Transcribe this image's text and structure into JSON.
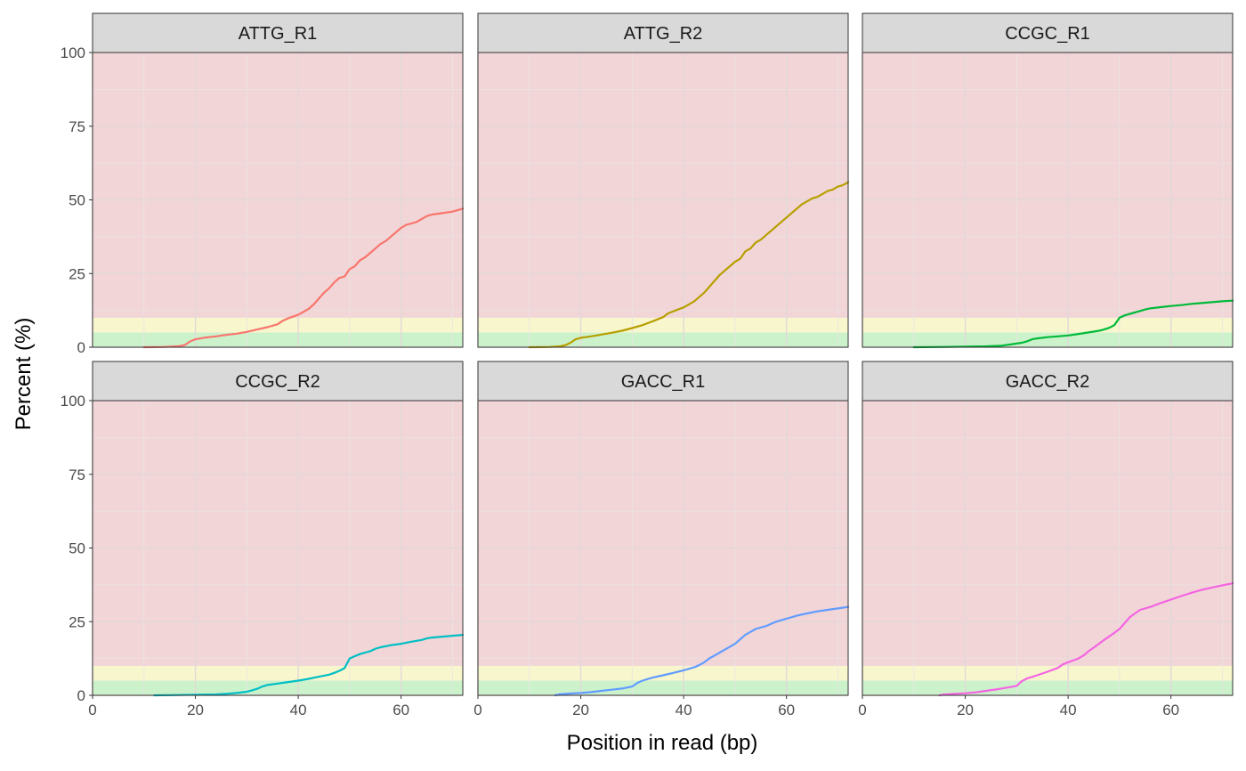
{
  "chart_data": {
    "type": "line",
    "layout": "facet-grid-2x3",
    "xlabel": "Position in read (bp)",
    "ylabel": "Percent (%)",
    "xlim": [
      0,
      72
    ],
    "ylim": [
      0,
      100
    ],
    "x_ticks": [
      0,
      20,
      40,
      60
    ],
    "y_ticks": [
      0,
      25,
      50,
      75,
      100
    ],
    "grid": true,
    "legend": "none",
    "background_bands": [
      {
        "from": 0,
        "to": 5,
        "color": "#ccf2cc"
      },
      {
        "from": 5,
        "to": 10,
        "color": "#f7f6cd"
      },
      {
        "from": 10,
        "to": 100,
        "color": "#f2d5d7"
      }
    ],
    "panels": [
      {
        "title": "ATTG_R1",
        "color": "#F8766D",
        "points": [
          [
            10,
            0
          ],
          [
            14,
            0.1
          ],
          [
            17,
            0.4
          ],
          [
            18,
            0.8
          ],
          [
            19,
            2.0
          ],
          [
            20,
            2.7
          ],
          [
            22,
            3.3
          ],
          [
            24,
            3.7
          ],
          [
            26,
            4.2
          ],
          [
            28,
            4.6
          ],
          [
            30,
            5.2
          ],
          [
            32,
            6.0
          ],
          [
            34,
            6.8
          ],
          [
            36,
            7.8
          ],
          [
            37,
            9.0
          ],
          [
            38,
            9.8
          ],
          [
            40,
            11.0
          ],
          [
            42,
            13.0
          ],
          [
            43,
            14.5
          ],
          [
            44,
            16.5
          ],
          [
            45,
            18.5
          ],
          [
            46,
            20.0
          ],
          [
            47,
            22.0
          ],
          [
            48,
            23.5
          ],
          [
            49,
            24.0
          ],
          [
            50,
            26.5
          ],
          [
            51,
            27.5
          ],
          [
            52,
            29.5
          ],
          [
            53,
            30.5
          ],
          [
            54,
            32.0
          ],
          [
            55,
            33.5
          ],
          [
            56,
            35.0
          ],
          [
            57,
            36.0
          ],
          [
            58,
            37.5
          ],
          [
            59,
            39.0
          ],
          [
            60,
            40.5
          ],
          [
            61,
            41.5
          ],
          [
            62,
            42.0
          ],
          [
            63,
            42.5
          ],
          [
            64,
            43.5
          ],
          [
            65,
            44.5
          ],
          [
            66,
            45.0
          ],
          [
            68,
            45.5
          ],
          [
            70,
            46.0
          ],
          [
            72,
            47.0
          ]
        ]
      },
      {
        "title": "ATTG_R2",
        "color": "#B79F00",
        "points": [
          [
            10,
            0
          ],
          [
            14,
            0.1
          ],
          [
            16,
            0.3
          ],
          [
            17,
            0.7
          ],
          [
            18,
            1.5
          ],
          [
            19,
            2.7
          ],
          [
            20,
            3.2
          ],
          [
            22,
            3.7
          ],
          [
            24,
            4.3
          ],
          [
            26,
            4.9
          ],
          [
            28,
            5.6
          ],
          [
            30,
            6.5
          ],
          [
            32,
            7.5
          ],
          [
            34,
            8.8
          ],
          [
            36,
            10.2
          ],
          [
            37,
            11.5
          ],
          [
            38,
            12.2
          ],
          [
            40,
            13.5
          ],
          [
            42,
            15.5
          ],
          [
            44,
            18.5
          ],
          [
            45,
            20.5
          ],
          [
            46,
            22.5
          ],
          [
            47,
            24.5
          ],
          [
            48,
            26.0
          ],
          [
            49,
            27.5
          ],
          [
            50,
            29.0
          ],
          [
            51,
            30.0
          ],
          [
            52,
            32.5
          ],
          [
            53,
            33.5
          ],
          [
            54,
            35.5
          ],
          [
            55,
            36.5
          ],
          [
            56,
            38.0
          ],
          [
            57,
            39.5
          ],
          [
            58,
            41.0
          ],
          [
            59,
            42.5
          ],
          [
            60,
            44.0
          ],
          [
            61,
            45.5
          ],
          [
            62,
            47.0
          ],
          [
            63,
            48.5
          ],
          [
            64,
            49.5
          ],
          [
            65,
            50.5
          ],
          [
            66,
            51.0
          ],
          [
            67,
            52.0
          ],
          [
            68,
            53.0
          ],
          [
            69,
            53.5
          ],
          [
            70,
            54.5
          ],
          [
            71,
            55.0
          ],
          [
            72,
            56.0
          ]
        ]
      },
      {
        "title": "CCGC_R1",
        "color": "#00BA38",
        "points": [
          [
            10,
            0
          ],
          [
            16,
            0.1
          ],
          [
            20,
            0.2
          ],
          [
            24,
            0.3
          ],
          [
            27,
            0.5
          ],
          [
            29,
            1.0
          ],
          [
            31,
            1.5
          ],
          [
            32,
            2.0
          ],
          [
            33,
            2.7
          ],
          [
            34,
            3.0
          ],
          [
            36,
            3.4
          ],
          [
            38,
            3.7
          ],
          [
            40,
            4.0
          ],
          [
            42,
            4.5
          ],
          [
            44,
            5.0
          ],
          [
            46,
            5.6
          ],
          [
            47,
            6.0
          ],
          [
            48,
            6.6
          ],
          [
            49,
            7.5
          ],
          [
            50,
            10.0
          ],
          [
            51,
            10.8
          ],
          [
            52,
            11.3
          ],
          [
            53,
            11.8
          ],
          [
            54,
            12.3
          ],
          [
            55,
            12.8
          ],
          [
            56,
            13.2
          ],
          [
            58,
            13.6
          ],
          [
            60,
            14.0
          ],
          [
            62,
            14.3
          ],
          [
            64,
            14.7
          ],
          [
            66,
            15.0
          ],
          [
            68,
            15.3
          ],
          [
            70,
            15.6
          ],
          [
            72,
            15.8
          ]
        ]
      },
      {
        "title": "CCGC_R2",
        "color": "#00BFC4",
        "points": [
          [
            12,
            0
          ],
          [
            16,
            0.1
          ],
          [
            20,
            0.2
          ],
          [
            24,
            0.3
          ],
          [
            26,
            0.5
          ],
          [
            28,
            0.8
          ],
          [
            30,
            1.2
          ],
          [
            31,
            1.7
          ],
          [
            32,
            2.2
          ],
          [
            33,
            3.0
          ],
          [
            34,
            3.5
          ],
          [
            36,
            4.0
          ],
          [
            38,
            4.5
          ],
          [
            40,
            5.0
          ],
          [
            42,
            5.6
          ],
          [
            44,
            6.3
          ],
          [
            46,
            7.0
          ],
          [
            47,
            7.6
          ],
          [
            48,
            8.3
          ],
          [
            49,
            9.2
          ],
          [
            50,
            12.5
          ],
          [
            51,
            13.3
          ],
          [
            52,
            14.0
          ],
          [
            53,
            14.5
          ],
          [
            54,
            15.0
          ],
          [
            55,
            15.8
          ],
          [
            56,
            16.3
          ],
          [
            58,
            17.0
          ],
          [
            60,
            17.5
          ],
          [
            62,
            18.2
          ],
          [
            64,
            18.8
          ],
          [
            65,
            19.3
          ],
          [
            66,
            19.6
          ],
          [
            68,
            19.9
          ],
          [
            70,
            20.2
          ],
          [
            72,
            20.5
          ]
        ]
      },
      {
        "title": "GACC_R1",
        "color": "#619CFF",
        "points": [
          [
            15,
            0
          ],
          [
            16,
            0.4
          ],
          [
            18,
            0.6
          ],
          [
            20,
            0.8
          ],
          [
            22,
            1.1
          ],
          [
            24,
            1.5
          ],
          [
            26,
            1.9
          ],
          [
            28,
            2.3
          ],
          [
            30,
            3.0
          ],
          [
            31,
            4.2
          ],
          [
            32,
            5.0
          ],
          [
            34,
            6.0
          ],
          [
            36,
            6.8
          ],
          [
            38,
            7.6
          ],
          [
            40,
            8.5
          ],
          [
            42,
            9.5
          ],
          [
            43,
            10.2
          ],
          [
            44,
            11.2
          ],
          [
            45,
            12.5
          ],
          [
            46,
            13.5
          ],
          [
            47,
            14.5
          ],
          [
            48,
            15.5
          ],
          [
            49,
            16.5
          ],
          [
            50,
            17.5
          ],
          [
            51,
            19.0
          ],
          [
            52,
            20.5
          ],
          [
            53,
            21.5
          ],
          [
            54,
            22.5
          ],
          [
            56,
            23.5
          ],
          [
            58,
            25.0
          ],
          [
            60,
            26.0
          ],
          [
            62,
            27.0
          ],
          [
            64,
            27.8
          ],
          [
            66,
            28.5
          ],
          [
            68,
            29.0
          ],
          [
            70,
            29.5
          ],
          [
            72,
            30.0
          ]
        ]
      },
      {
        "title": "GACC_R2",
        "color": "#F564E3",
        "points": [
          [
            15,
            0
          ],
          [
            16,
            0.3
          ],
          [
            18,
            0.5
          ],
          [
            20,
            0.7
          ],
          [
            22,
            1.0
          ],
          [
            24,
            1.5
          ],
          [
            26,
            2.0
          ],
          [
            28,
            2.6
          ],
          [
            30,
            3.2
          ],
          [
            31,
            4.8
          ],
          [
            32,
            5.7
          ],
          [
            34,
            6.8
          ],
          [
            36,
            8.0
          ],
          [
            38,
            9.3
          ],
          [
            39,
            10.5
          ],
          [
            40,
            11.2
          ],
          [
            42,
            12.5
          ],
          [
            43,
            13.5
          ],
          [
            44,
            15.0
          ],
          [
            45,
            16.2
          ],
          [
            46,
            17.5
          ],
          [
            47,
            18.8
          ],
          [
            48,
            20.0
          ],
          [
            49,
            21.2
          ],
          [
            50,
            22.5
          ],
          [
            51,
            24.5
          ],
          [
            52,
            26.5
          ],
          [
            53,
            27.8
          ],
          [
            54,
            29.0
          ],
          [
            56,
            30.0
          ],
          [
            58,
            31.3
          ],
          [
            60,
            32.5
          ],
          [
            62,
            33.7
          ],
          [
            64,
            34.8
          ],
          [
            66,
            35.8
          ],
          [
            68,
            36.6
          ],
          [
            70,
            37.3
          ],
          [
            72,
            38.0
          ]
        ]
      }
    ]
  }
}
